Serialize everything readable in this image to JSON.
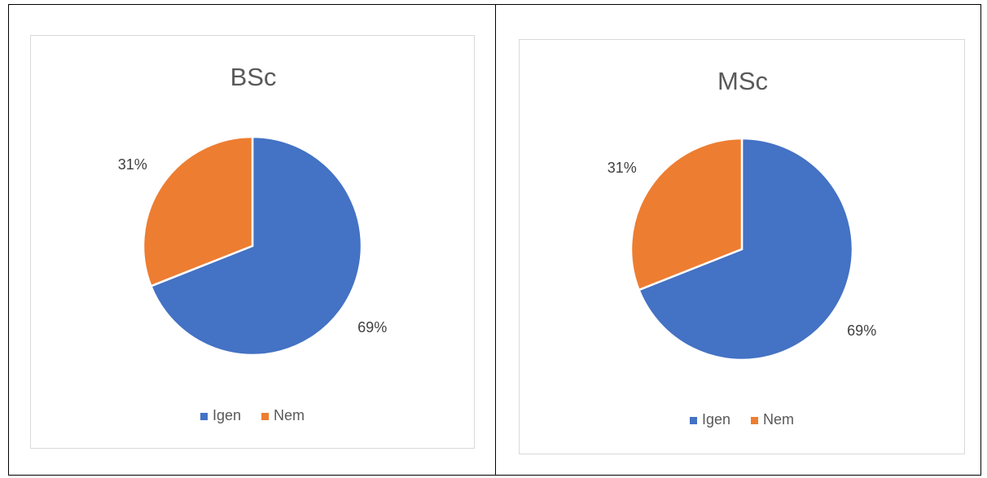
{
  "chart_data": [
    {
      "type": "pie",
      "title": "BSc",
      "categories": [
        "Igen",
        "Nem"
      ],
      "values": [
        69,
        31
      ],
      "unit": "%",
      "labels": [
        "69%",
        "31%"
      ],
      "colors": [
        "#4472C4",
        "#ED7D31"
      ],
      "legend": "bottom"
    },
    {
      "type": "pie",
      "title": "MSc",
      "categories": [
        "Igen",
        "Nem"
      ],
      "values": [
        69,
        31
      ],
      "unit": "%",
      "labels": [
        "69%",
        "31%"
      ],
      "colors": [
        "#4472C4",
        "#ED7D31"
      ],
      "legend": "bottom"
    }
  ]
}
